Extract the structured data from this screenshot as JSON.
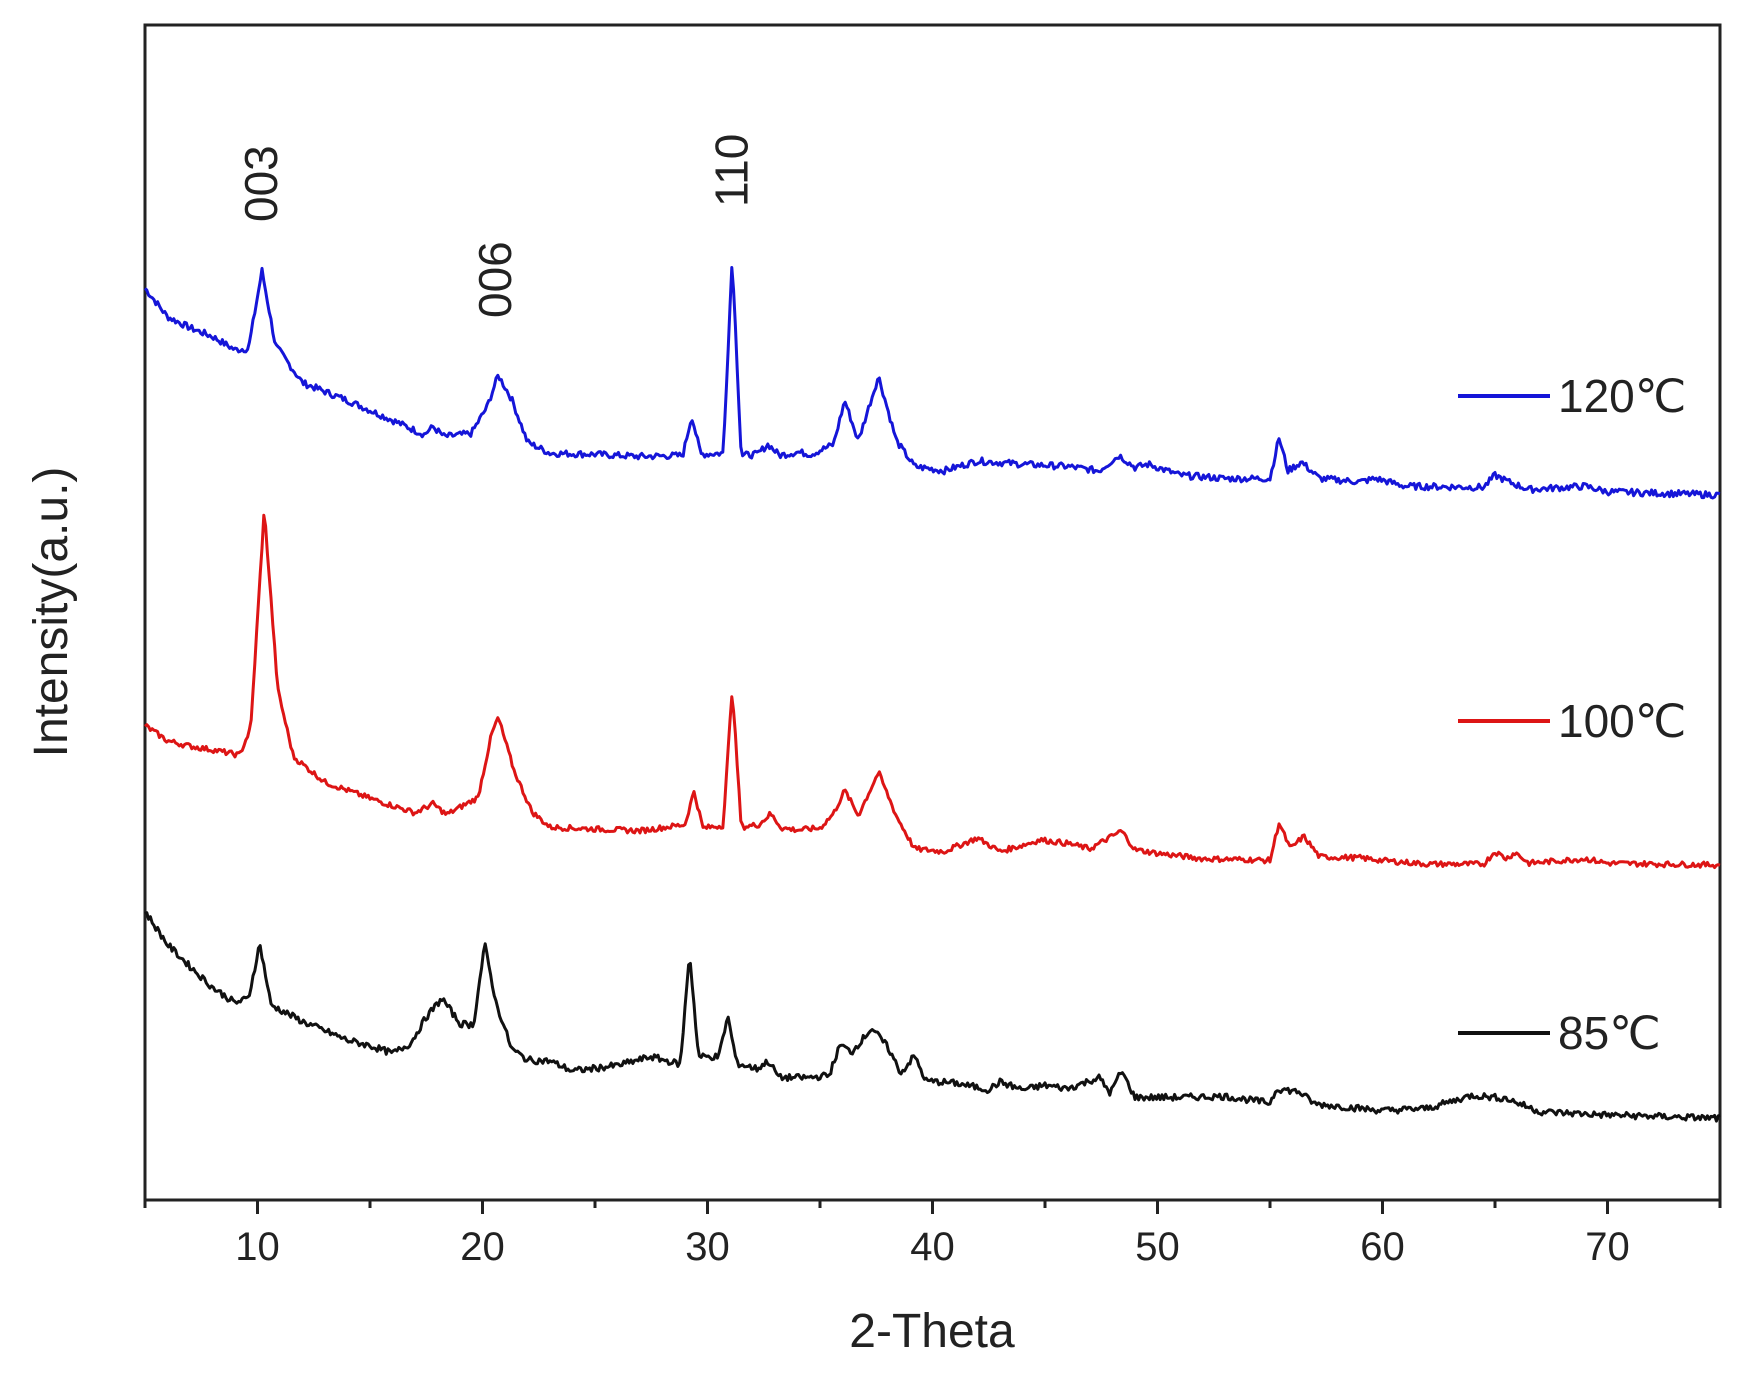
{
  "chart_data": {
    "type": "line",
    "title": "",
    "xlabel": "2-Theta",
    "ylabel": "Intensity(a.u.)",
    "xlim": [
      5,
      75
    ],
    "xticks": [
      10,
      20,
      30,
      40,
      50,
      60,
      70
    ],
    "yticks": [],
    "grid": false,
    "legend_placement": "right, next to each trace",
    "peak_labels": [
      {
        "text": "003",
        "x": 10.2
      },
      {
        "text": "006",
        "x": 20.6
      },
      {
        "text": "110",
        "x": 31.1
      }
    ],
    "series": [
      {
        "name": "120℃",
        "color": "#1515d8",
        "points": [
          [
            5,
            1.88
          ],
          [
            6,
            1.62
          ],
          [
            7,
            1.52
          ],
          [
            8,
            1.44
          ],
          [
            9,
            1.32
          ],
          [
            9.6,
            1.33
          ],
          [
            10.2,
            2.04
          ],
          [
            10.8,
            1.36
          ],
          [
            12,
            1.02
          ],
          [
            14,
            0.86
          ],
          [
            16,
            0.68
          ],
          [
            17.4,
            0.55
          ],
          [
            17.8,
            0.62
          ],
          [
            18.3,
            0.53
          ],
          [
            19.5,
            0.56
          ],
          [
            20.2,
            0.8
          ],
          [
            20.7,
            1.09
          ],
          [
            21.3,
            0.87
          ],
          [
            22,
            0.48
          ],
          [
            23,
            0.38
          ],
          [
            25,
            0.37
          ],
          [
            27,
            0.35
          ],
          [
            28.9,
            0.36
          ],
          [
            29.3,
            0.72
          ],
          [
            29.7,
            0.37
          ],
          [
            30.7,
            0.38
          ],
          [
            31.1,
            2.16
          ],
          [
            31.5,
            0.36
          ],
          [
            32.2,
            0.37
          ],
          [
            32.7,
            0.46
          ],
          [
            33.2,
            0.36
          ],
          [
            34,
            0.39
          ],
          [
            34.6,
            0.37
          ],
          [
            35.6,
            0.46
          ],
          [
            36.1,
            0.86
          ],
          [
            36.7,
            0.49
          ],
          [
            37.6,
            1.08
          ],
          [
            38.4,
            0.49
          ],
          [
            39.2,
            0.26
          ],
          [
            40.5,
            0.22
          ],
          [
            42,
            0.31
          ],
          [
            44,
            0.28
          ],
          [
            46,
            0.26
          ],
          [
            47.4,
            0.22
          ],
          [
            48.3,
            0.36
          ],
          [
            49,
            0.25
          ],
          [
            49.6,
            0.28
          ],
          [
            51,
            0.18
          ],
          [
            53,
            0.15
          ],
          [
            55,
            0.15
          ],
          [
            55.4,
            0.52
          ],
          [
            55.8,
            0.22
          ],
          [
            56.4,
            0.3
          ],
          [
            57.2,
            0.15
          ],
          [
            59,
            0.12
          ],
          [
            59.7,
            0.15
          ],
          [
            61,
            0.08
          ],
          [
            64.5,
            0.07
          ],
          [
            65,
            0.18
          ],
          [
            65.6,
            0.12
          ],
          [
            66.5,
            0.05
          ],
          [
            69,
            0.08
          ],
          [
            70,
            0.03
          ],
          [
            75,
            0
          ]
        ]
      },
      {
        "name": "100℃",
        "color": "#dd1515",
        "points": [
          [
            5,
            1.55
          ],
          [
            6,
            1.38
          ],
          [
            7,
            1.32
          ],
          [
            8,
            1.28
          ],
          [
            9.2,
            1.22
          ],
          [
            9.7,
            1.52
          ],
          [
            10.3,
            3.95
          ],
          [
            10.9,
            1.95
          ],
          [
            11.6,
            1.2
          ],
          [
            13,
            0.92
          ],
          [
            15,
            0.74
          ],
          [
            17,
            0.58
          ],
          [
            17.8,
            0.68
          ],
          [
            18.4,
            0.56
          ],
          [
            19.8,
            0.75
          ],
          [
            20.4,
            1.45
          ],
          [
            20.7,
            1.64
          ],
          [
            21.4,
            1.05
          ],
          [
            22.2,
            0.59
          ],
          [
            23,
            0.42
          ],
          [
            25,
            0.4
          ],
          [
            27,
            0.38
          ],
          [
            29,
            0.45
          ],
          [
            29.4,
            0.82
          ],
          [
            29.8,
            0.41
          ],
          [
            30.7,
            0.44
          ],
          [
            31.1,
            1.97
          ],
          [
            31.5,
            0.42
          ],
          [
            32.3,
            0.45
          ],
          [
            32.8,
            0.57
          ],
          [
            33.3,
            0.41
          ],
          [
            34,
            0.39
          ],
          [
            35,
            0.41
          ],
          [
            35.6,
            0.57
          ],
          [
            36.1,
            0.83
          ],
          [
            36.7,
            0.55
          ],
          [
            37.6,
            1.03
          ],
          [
            38.4,
            0.54
          ],
          [
            39.2,
            0.18
          ],
          [
            40.5,
            0.15
          ],
          [
            42,
            0.3
          ],
          [
            43,
            0.15
          ],
          [
            44,
            0.22
          ],
          [
            44.8,
            0.28
          ],
          [
            46,
            0.24
          ],
          [
            47,
            0.18
          ],
          [
            48.4,
            0.38
          ],
          [
            49,
            0.17
          ],
          [
            50,
            0.13
          ],
          [
            52,
            0.07
          ],
          [
            54,
            0.06
          ],
          [
            55,
            0.05
          ],
          [
            55.4,
            0.47
          ],
          [
            55.9,
            0.18
          ],
          [
            56.5,
            0.32
          ],
          [
            57.2,
            0.09
          ],
          [
            59,
            0.08
          ],
          [
            60,
            0.05
          ],
          [
            62,
            0.01
          ],
          [
            64.5,
            0.01
          ],
          [
            65,
            0.15
          ],
          [
            65.5,
            0.07
          ],
          [
            65.9,
            0.14
          ],
          [
            66.5,
            0.02
          ],
          [
            68,
            0.05
          ],
          [
            69,
            0.07
          ],
          [
            70,
            0.02
          ],
          [
            75,
            0
          ]
        ]
      },
      {
        "name": "85℃",
        "color": "#111111",
        "points": [
          [
            5,
            1.75
          ],
          [
            6,
            1.45
          ],
          [
            7,
            1.25
          ],
          [
            8,
            1.06
          ],
          [
            9,
            0.92
          ],
          [
            9.6,
            0.96
          ],
          [
            10.1,
            1.46
          ],
          [
            10.6,
            0.9
          ],
          [
            12,
            0.75
          ],
          [
            14,
            0.58
          ],
          [
            15,
            0.53
          ],
          [
            16,
            0.46
          ],
          [
            16.8,
            0.55
          ],
          [
            17.5,
            0.79
          ],
          [
            18.2,
            0.96
          ],
          [
            19,
            0.73
          ],
          [
            19.6,
            0.72
          ],
          [
            20.1,
            1.45
          ],
          [
            20.6,
            0.92
          ],
          [
            21.3,
            0.5
          ],
          [
            22,
            0.4
          ],
          [
            23,
            0.39
          ],
          [
            24,
            0.3
          ],
          [
            26,
            0.35
          ],
          [
            27.5,
            0.43
          ],
          [
            28.8,
            0.36
          ],
          [
            29.2,
            1.38
          ],
          [
            29.6,
            0.43
          ],
          [
            30.5,
            0.43
          ],
          [
            30.9,
            0.8
          ],
          [
            31.3,
            0.37
          ],
          [
            32.2,
            0.32
          ],
          [
            32.7,
            0.39
          ],
          [
            33.2,
            0.24
          ],
          [
            34.5,
            0.24
          ],
          [
            35.4,
            0.26
          ],
          [
            35.9,
            0.54
          ],
          [
            36.4,
            0.47
          ],
          [
            37.3,
            0.69
          ],
          [
            38,
            0.52
          ],
          [
            38.6,
            0.28
          ],
          [
            39.2,
            0.44
          ],
          [
            39.7,
            0.21
          ],
          [
            41,
            0.19
          ],
          [
            42.5,
            0.13
          ],
          [
            43,
            0.2
          ],
          [
            44,
            0.13
          ],
          [
            45,
            0.17
          ],
          [
            46,
            0.14
          ],
          [
            47.4,
            0.24
          ],
          [
            47.9,
            0.1
          ],
          [
            48.4,
            0.3
          ],
          [
            49,
            0.06
          ],
          [
            51,
            0.06
          ],
          [
            53,
            0.07
          ],
          [
            55,
            0.01
          ],
          [
            55.3,
            0.14
          ],
          [
            56.3,
            0.11
          ],
          [
            57,
            0
          ],
          [
            60,
            -0.06
          ],
          [
            62,
            -0.04
          ],
          [
            64,
            0.08
          ],
          [
            65.5,
            0.05
          ],
          [
            67,
            -0.07
          ],
          [
            70,
            -0.1
          ],
          [
            75,
            -0.13
          ]
        ]
      }
    ]
  }
}
